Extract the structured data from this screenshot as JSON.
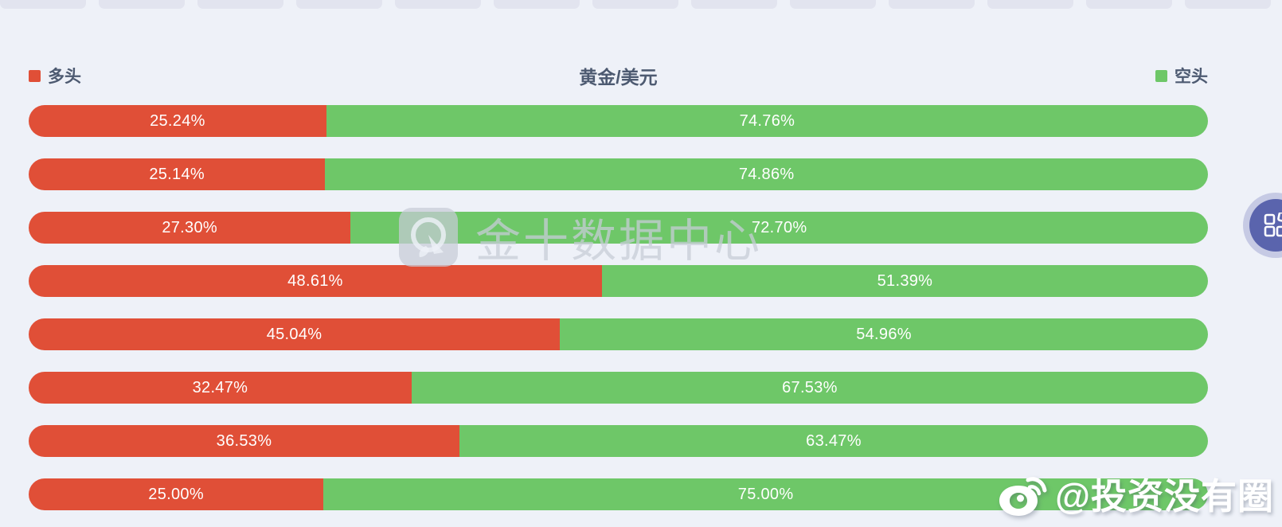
{
  "top_tabs": {
    "count": 13
  },
  "header": {
    "title": "黄金/美元",
    "legend_long": {
      "label": "多头",
      "color": "#e04f37"
    },
    "legend_short": {
      "label": "空头",
      "color": "#6ec768"
    }
  },
  "chart_data": {
    "type": "bar",
    "orientation": "horizontal-stacked",
    "title": "黄金/美元",
    "legend": [
      "多头",
      "空头"
    ],
    "legend_position": "top-left / top-right",
    "xlim": [
      0,
      100
    ],
    "grid": false,
    "colors": {
      "long": "#e04f37",
      "short": "#6ec768"
    },
    "rows": [
      {
        "long_pct": 25.24,
        "short_pct": 74.76,
        "long_label": "25.24%",
        "short_label": "74.76%"
      },
      {
        "long_pct": 25.14,
        "short_pct": 74.86,
        "long_label": "25.14%",
        "short_label": "74.86%"
      },
      {
        "long_pct": 27.3,
        "short_pct": 72.7,
        "long_label": "27.30%",
        "short_label": "72.70%"
      },
      {
        "long_pct": 48.61,
        "short_pct": 51.39,
        "long_label": "48.61%",
        "short_label": "51.39%"
      },
      {
        "long_pct": 45.04,
        "short_pct": 54.96,
        "long_label": "45.04%",
        "short_label": "54.96%"
      },
      {
        "long_pct": 32.47,
        "short_pct": 67.53,
        "long_label": "32.47%",
        "short_label": "67.53%"
      },
      {
        "long_pct": 36.53,
        "short_pct": 63.47,
        "long_label": "36.53%",
        "short_label": "63.47%"
      },
      {
        "long_pct": 25.0,
        "short_pct": 75.0,
        "long_label": "25.00%",
        "short_label": "75.00%"
      }
    ]
  },
  "watermark_center": {
    "text": "金十数据中心",
    "icon": "jin10-compass-logo"
  },
  "watermark_bottom_right": {
    "text": "@投资没有圈",
    "icon": "weibo-icon"
  },
  "fab": {
    "icon": "apps-grid-icon",
    "color": "#5a64ad",
    "ring_color": "#c6cae4"
  }
}
